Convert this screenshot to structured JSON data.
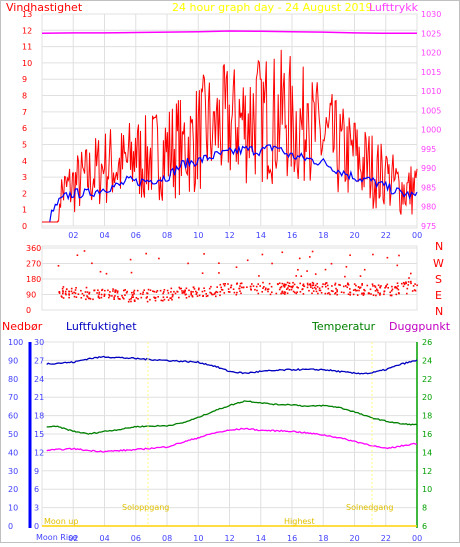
{
  "header": {
    "left_label": "Vindhastighet",
    "title": "24 hour graph day - 24 August 2019",
    "right_label": "Lufttrykk"
  },
  "bottom_header": {
    "rain_label": "Nedbør",
    "humidity_label": "Luftfuktighet",
    "temp_label": "Temperatur",
    "dew_label": "Duggpunkt"
  },
  "compass": [
    "N",
    "W",
    "S",
    "E",
    "N"
  ],
  "annotations": {
    "sunrise": "Soloppgang",
    "sunset": "Solnedgang",
    "moonrise": "Moon Rise",
    "moon_up": "Moon up",
    "highest": "Highest"
  },
  "colors": {
    "wind": "#ff0000",
    "wind_avg": "#0000ff",
    "pressure": "#ff00ff",
    "humidity": "#0000c0",
    "temperature": "#008000",
    "dewpoint": "#ff00ff",
    "axis_blue": "#4040ff",
    "grid": "#e0e0e0"
  },
  "chart_data": [
    {
      "type": "line",
      "series": [
        {
          "name": "Vindhastighet",
          "values": [
            [
              0.5,
              1.4
            ],
            [
              1,
              2.0
            ],
            [
              1.5,
              2.2
            ],
            [
              2,
              2.5
            ],
            [
              2.5,
              2.8
            ],
            [
              3,
              3.0
            ],
            [
              3.5,
              3.4
            ],
            [
              4,
              3.6
            ],
            [
              4.5,
              3.8
            ],
            [
              5,
              3.6
            ],
            [
              5.5,
              3.9
            ],
            [
              6,
              4.2
            ],
            [
              6.5,
              4.0
            ],
            [
              7,
              4.3
            ],
            [
              7.5,
              4.5
            ],
            [
              8,
              4.6
            ],
            [
              8.5,
              4.8
            ],
            [
              9,
              5.2
            ],
            [
              9.5,
              5.0
            ],
            [
              10,
              5.5
            ],
            [
              10.5,
              5.8
            ],
            [
              11,
              6.1
            ],
            [
              11.5,
              6.0
            ],
            [
              12,
              6.3
            ],
            [
              12.5,
              6.5
            ],
            [
              13,
              6.4
            ],
            [
              13.5,
              6.8
            ],
            [
              14,
              6.6
            ],
            [
              14.5,
              6.8
            ],
            [
              15,
              6.5
            ],
            [
              15.5,
              7.0
            ],
            [
              16,
              6.4
            ],
            [
              16.5,
              6.1
            ],
            [
              17,
              5.9
            ],
            [
              17.5,
              5.6
            ],
            [
              18,
              5.3
            ],
            [
              18.5,
              5.0
            ],
            [
              19,
              4.6
            ],
            [
              19.5,
              4.4
            ],
            [
              20,
              4.0
            ],
            [
              20.5,
              3.8
            ],
            [
              21,
              3.6
            ],
            [
              21.5,
              3.2
            ],
            [
              22,
              2.9
            ],
            [
              22.5,
              2.6
            ],
            [
              23,
              2.3
            ],
            [
              23.5,
              2.2
            ],
            [
              24,
              2.4
            ]
          ],
          "peaks": [
            [
              1.5,
              3.0
            ],
            [
              4,
              3.5
            ],
            [
              6,
              5.4
            ],
            [
              9,
              5.8
            ],
            [
              11,
              7.0
            ],
            [
              12.3,
              9.6
            ],
            [
              13,
              8.0
            ],
            [
              14,
              9.0
            ],
            [
              15.3,
              10.8
            ],
            [
              16,
              8.6
            ],
            [
              17,
              7.5
            ],
            [
              18.5,
              7.4
            ],
            [
              20,
              6.3
            ],
            [
              22,
              4.3
            ]
          ]
        },
        {
          "name": "Vind gjennomsnitt",
          "values": [
            [
              0.5,
              0.5
            ],
            [
              1,
              1.4
            ],
            [
              1.5,
              1.8
            ],
            [
              2,
              2.0
            ],
            [
              3,
              2.0
            ],
            [
              4,
              2.3
            ],
            [
              5,
              2.5
            ],
            [
              5.5,
              2.8
            ],
            [
              6,
              2.7
            ],
            [
              7,
              2.8
            ],
            [
              8,
              3.0
            ],
            [
              8.5,
              3.4
            ],
            [
              9,
              3.8
            ],
            [
              10,
              4.0
            ],
            [
              11,
              4.3
            ],
            [
              12,
              4.5
            ],
            [
              13,
              4.7
            ],
            [
              14,
              4.6
            ],
            [
              15,
              4.9
            ],
            [
              15.5,
              4.5
            ],
            [
              16,
              4.3
            ],
            [
              17,
              4.1
            ],
            [
              18,
              3.9
            ],
            [
              19,
              3.4
            ],
            [
              20,
              3.0
            ],
            [
              21,
              2.8
            ],
            [
              22,
              2.4
            ],
            [
              23,
              2.0
            ],
            [
              24,
              1.8
            ]
          ]
        },
        {
          "name": "Lufttrykk",
          "values": [
            [
              0,
              1025.0
            ],
            [
              2,
              1025.1
            ],
            [
              4,
              1025.1
            ],
            [
              6,
              1025.2
            ],
            [
              8,
              1025.3
            ],
            [
              10,
              1025.4
            ],
            [
              12,
              1025.6
            ],
            [
              14,
              1025.5
            ],
            [
              16,
              1025.4
            ],
            [
              18,
              1025.3
            ],
            [
              20,
              1025.1
            ],
            [
              22,
              1025.0
            ],
            [
              24,
              1025.0
            ]
          ]
        }
      ],
      "xlim": [
        0,
        24
      ],
      "x_ticks": [
        "02",
        "04",
        "06",
        "08",
        "10",
        "12",
        "14",
        "16",
        "18",
        "20",
        "22",
        "00"
      ],
      "y_left_ticks": [
        "0",
        "1",
        "2",
        "3",
        "4",
        "5",
        "6",
        "7",
        "8",
        "9",
        "10",
        "11",
        "12",
        "13"
      ],
      "y_right_ticks": [
        "975",
        "980",
        "985",
        "990",
        "995",
        "1000",
        "1005",
        "1010",
        "1015",
        "1020",
        "1025",
        "1030"
      ],
      "ylim_left": [
        0,
        13
      ],
      "ylim_right": [
        975,
        1030
      ]
    },
    {
      "type": "scatter",
      "name": "Vindretning",
      "y_ticks": [
        "0",
        "90",
        "180",
        "270",
        "360"
      ],
      "ylim": [
        0,
        360
      ],
      "xlim": [
        0,
        24
      ],
      "trend": [
        [
          0,
          110
        ],
        [
          2,
          105
        ],
        [
          4,
          95
        ],
        [
          6,
          85
        ],
        [
          8,
          95
        ],
        [
          10,
          110
        ],
        [
          12,
          125
        ],
        [
          14,
          130
        ],
        [
          16,
          130
        ],
        [
          18,
          130
        ],
        [
          20,
          125
        ],
        [
          22,
          120
        ],
        [
          24,
          140
        ]
      ]
    },
    {
      "type": "line",
      "series": [
        {
          "name": "Luftfuktighet",
          "values": [
            [
              0,
              88
            ],
            [
              2,
              89
            ],
            [
              3,
              91
            ],
            [
              4,
              92
            ],
            [
              6,
              91
            ],
            [
              8,
              90
            ],
            [
              10,
              89
            ],
            [
              11,
              87
            ],
            [
              12,
              84
            ],
            [
              13,
              83
            ],
            [
              14,
              84
            ],
            [
              16,
              85
            ],
            [
              18,
              85
            ],
            [
              20,
              83
            ],
            [
              21,
              83
            ],
            [
              22,
              85
            ],
            [
              23,
              88
            ],
            [
              24,
              90
            ]
          ]
        },
        {
          "name": "Temperatur",
          "values": [
            [
              0,
              16.8
            ],
            [
              1,
              16.8
            ],
            [
              2,
              16.3
            ],
            [
              3,
              16.0
            ],
            [
              4,
              16.3
            ],
            [
              5,
              16.5
            ],
            [
              6,
              16.8
            ],
            [
              8,
              16.9
            ],
            [
              9,
              17.2
            ],
            [
              10,
              17.8
            ],
            [
              11,
              18.5
            ],
            [
              12,
              19.1
            ],
            [
              13,
              19.6
            ],
            [
              14,
              19.4
            ],
            [
              15,
              19.2
            ],
            [
              16,
              19.2
            ],
            [
              17,
              19.0
            ],
            [
              18,
              19.1
            ],
            [
              19,
              18.9
            ],
            [
              20,
              18.4
            ],
            [
              21,
              17.8
            ],
            [
              22,
              17.4
            ],
            [
              23,
              17.1
            ],
            [
              24,
              17.0
            ]
          ]
        },
        {
          "name": "Duggpunkt",
          "values": [
            [
              0,
              14.2
            ],
            [
              2,
              14.4
            ],
            [
              3,
              14.2
            ],
            [
              4,
              14.1
            ],
            [
              6,
              14.3
            ],
            [
              8,
              14.6
            ],
            [
              9,
              15.1
            ],
            [
              10,
              15.6
            ],
            [
              11,
              16.1
            ],
            [
              12,
              16.4
            ],
            [
              13,
              16.6
            ],
            [
              14,
              16.4
            ],
            [
              16,
              16.3
            ],
            [
              17,
              16.1
            ],
            [
              18,
              15.9
            ],
            [
              19,
              15.6
            ],
            [
              20,
              15.2
            ],
            [
              21,
              14.8
            ],
            [
              22,
              14.4
            ],
            [
              23,
              14.7
            ],
            [
              24,
              15.0
            ]
          ]
        }
      ],
      "xlim": [
        0,
        24
      ],
      "x_ticks": [
        "02",
        "04",
        "06",
        "08",
        "10",
        "12",
        "14",
        "16",
        "18",
        "20",
        "22",
        "00"
      ],
      "y_hum_ticks": [
        "0",
        "10",
        "20",
        "30",
        "40",
        "50",
        "60",
        "70",
        "80",
        "90",
        "100"
      ],
      "y_rain_ticks": [
        "0",
        "3",
        "6",
        "9",
        "12",
        "15",
        "18",
        "21",
        "24",
        "27",
        "30"
      ],
      "y_temp_ticks": [
        "6",
        "8",
        "10",
        "12",
        "14",
        "16",
        "18",
        "20",
        "22",
        "24",
        "26"
      ],
      "ylim_hum": [
        0,
        100
      ],
      "ylim_temp": [
        6,
        26
      ]
    }
  ]
}
